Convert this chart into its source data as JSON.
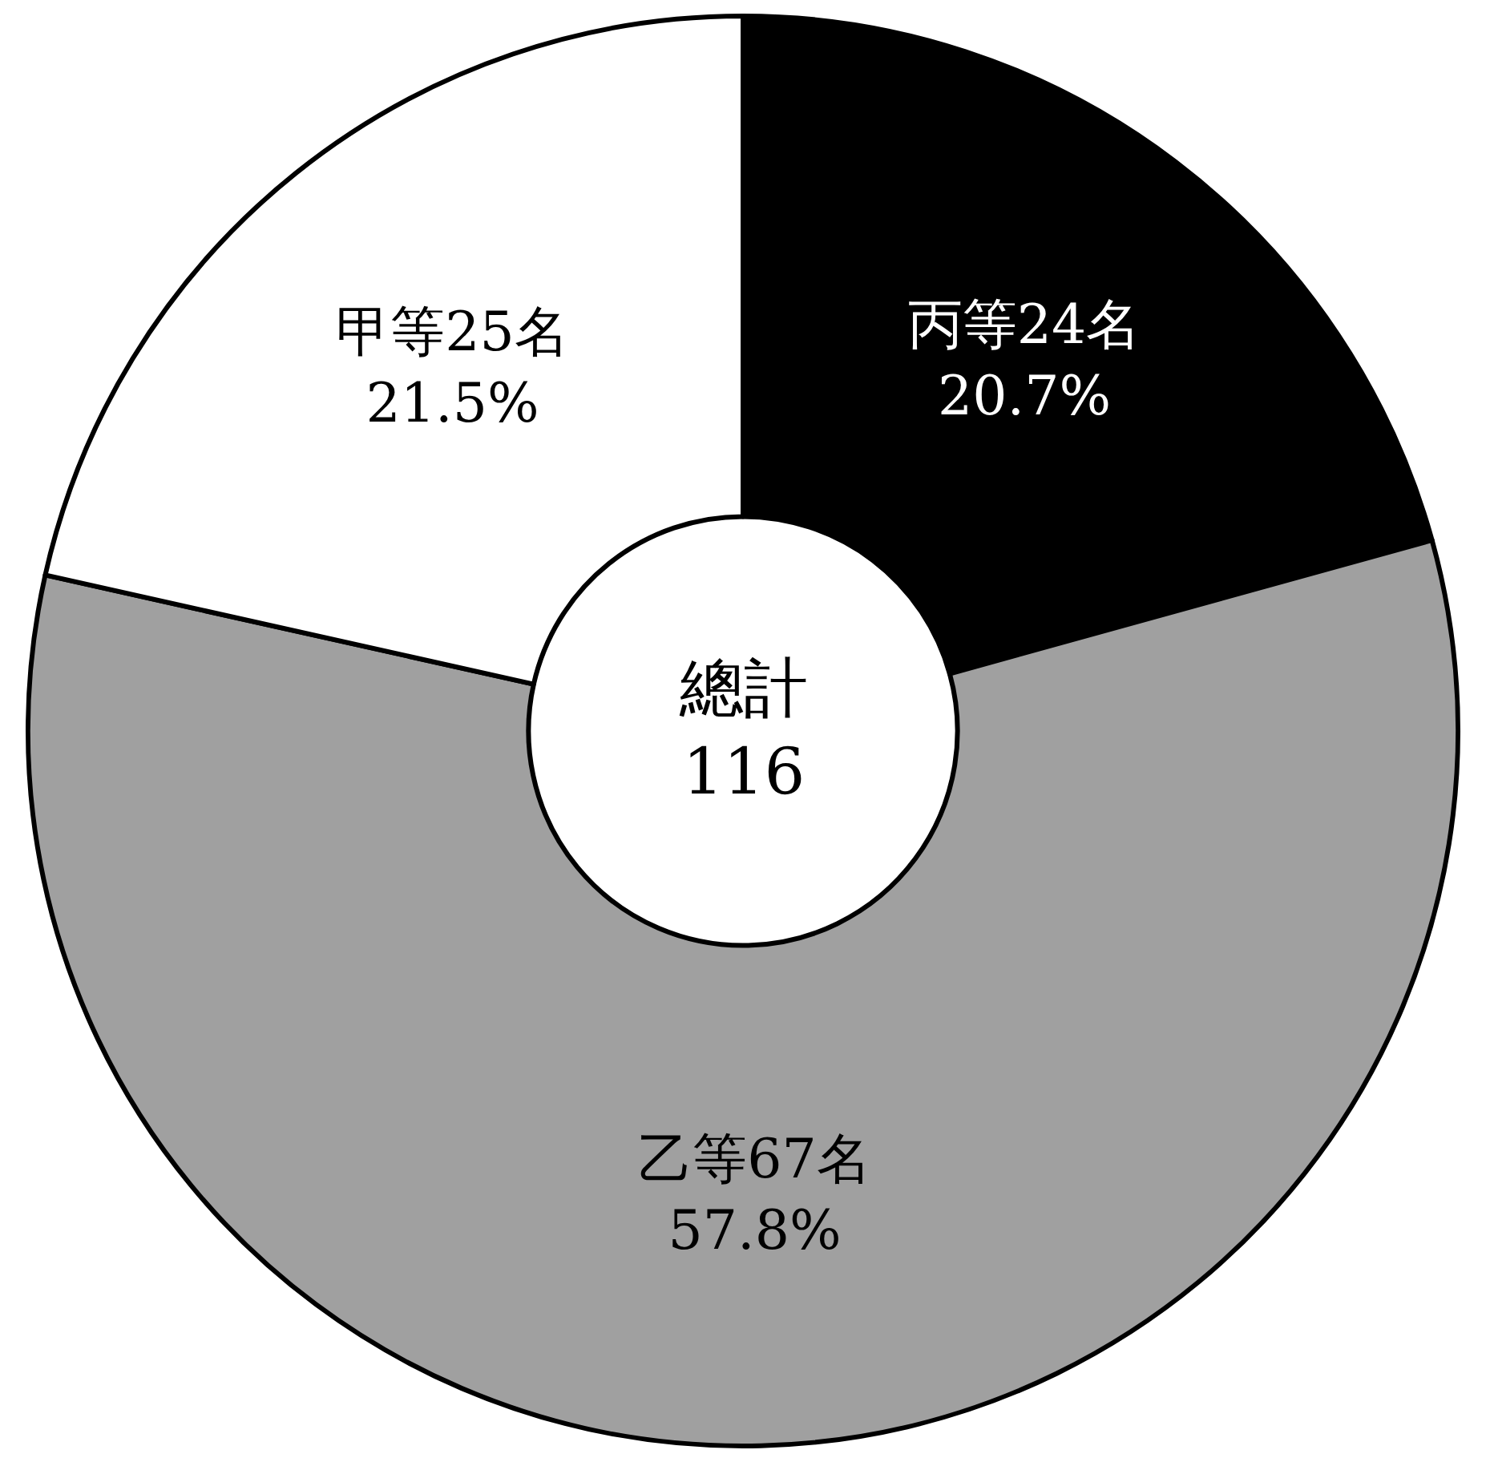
{
  "chart_data": {
    "type": "donut",
    "categories": [
      "丙等",
      "乙等",
      "甲等"
    ],
    "values": [
      20.7,
      57.8,
      21.5
    ],
    "value_labels": [
      "24名\n20.7%",
      "67名\n57.8%",
      "25名\n21.5%"
    ],
    "colors": [
      "#000000",
      "#a0a0a0",
      "#ffffff"
    ],
    "annotations": [
      "總計\n116"
    ],
    "legend": false
  }
}
